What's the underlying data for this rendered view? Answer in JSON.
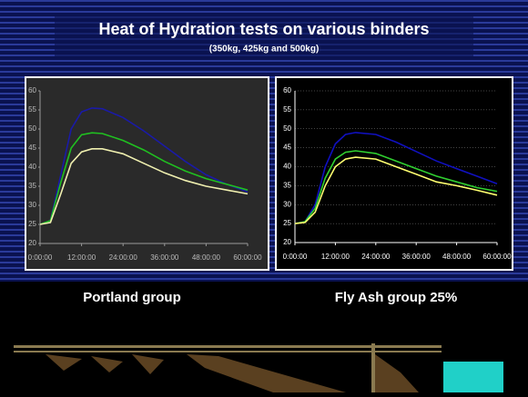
{
  "header": {
    "title": "Heat of Hydration tests on various binders",
    "subtitle": "(350kg, 425kg and 500kg)"
  },
  "chart_data": [
    {
      "type": "line",
      "title": "Portland group",
      "grid": false,
      "x": [
        0,
        3,
        6,
        9,
        12,
        15,
        18,
        24,
        30,
        36,
        42,
        48,
        54,
        60
      ],
      "xlim": [
        0,
        60
      ],
      "xticks": [
        {
          "value": 0,
          "label": "0:00:00"
        },
        {
          "value": 12,
          "label": "12:00:00"
        },
        {
          "value": 24,
          "label": "24:00:00"
        },
        {
          "value": 36,
          "label": "36:00:00"
        },
        {
          "value": 48,
          "label": "48:00:00"
        },
        {
          "value": 60,
          "label": "60:00:00"
        }
      ],
      "ylim": [
        20,
        60
      ],
      "yticks": [
        20,
        25,
        30,
        35,
        40,
        45,
        50,
        55,
        60
      ],
      "series": [
        {
          "color": "#1a1aa8",
          "values": [
            25,
            26,
            38,
            50,
            54.5,
            55.5,
            55.3,
            53,
            49.5,
            45.5,
            41.5,
            38,
            35.5,
            33.5
          ]
        },
        {
          "color": "#20c020",
          "values": [
            25,
            26,
            36,
            45,
            48.5,
            49,
            48.8,
            47,
            44.5,
            41.5,
            39,
            37,
            35.5,
            34
          ]
        },
        {
          "color": "#f0f0b0",
          "values": [
            25,
            25.5,
            33,
            41,
            44,
            44.8,
            44.8,
            43.5,
            41,
            38.5,
            36.5,
            35,
            34,
            33
          ]
        }
      ]
    },
    {
      "type": "line",
      "title": "Fly Ash group 25%",
      "grid": true,
      "x": [
        0,
        3,
        6,
        9,
        12,
        15,
        18,
        24,
        30,
        36,
        42,
        48,
        54,
        60
      ],
      "xlim": [
        0,
        60
      ],
      "xticks": [
        {
          "value": 0,
          "label": "0:00:00"
        },
        {
          "value": 12,
          "label": "12:00:00"
        },
        {
          "value": 24,
          "label": "24:00:00"
        },
        {
          "value": 36,
          "label": "36:00:00"
        },
        {
          "value": 48,
          "label": "48:00:00"
        },
        {
          "value": 60,
          "label": "60:00:00"
        }
      ],
      "ylim": [
        20,
        60
      ],
      "yticks": [
        20,
        25,
        30,
        35,
        40,
        45,
        50,
        55,
        60
      ],
      "series": [
        {
          "color": "#1010c0",
          "values": [
            25,
            25.5,
            30,
            40,
            46,
            48.5,
            49,
            48.5,
            46.5,
            44,
            41.5,
            39.5,
            37.5,
            35.5
          ]
        },
        {
          "color": "#30d030",
          "values": [
            25,
            25.5,
            29,
            37,
            42,
            43.8,
            44.2,
            43.5,
            41.5,
            39.5,
            37.5,
            36,
            34.5,
            33.5
          ]
        },
        {
          "color": "#ffff70",
          "values": [
            25,
            25.3,
            28,
            35,
            40,
            42,
            42.5,
            42,
            40,
            38,
            36,
            35,
            33.8,
            32.5
          ]
        }
      ]
    }
  ]
}
